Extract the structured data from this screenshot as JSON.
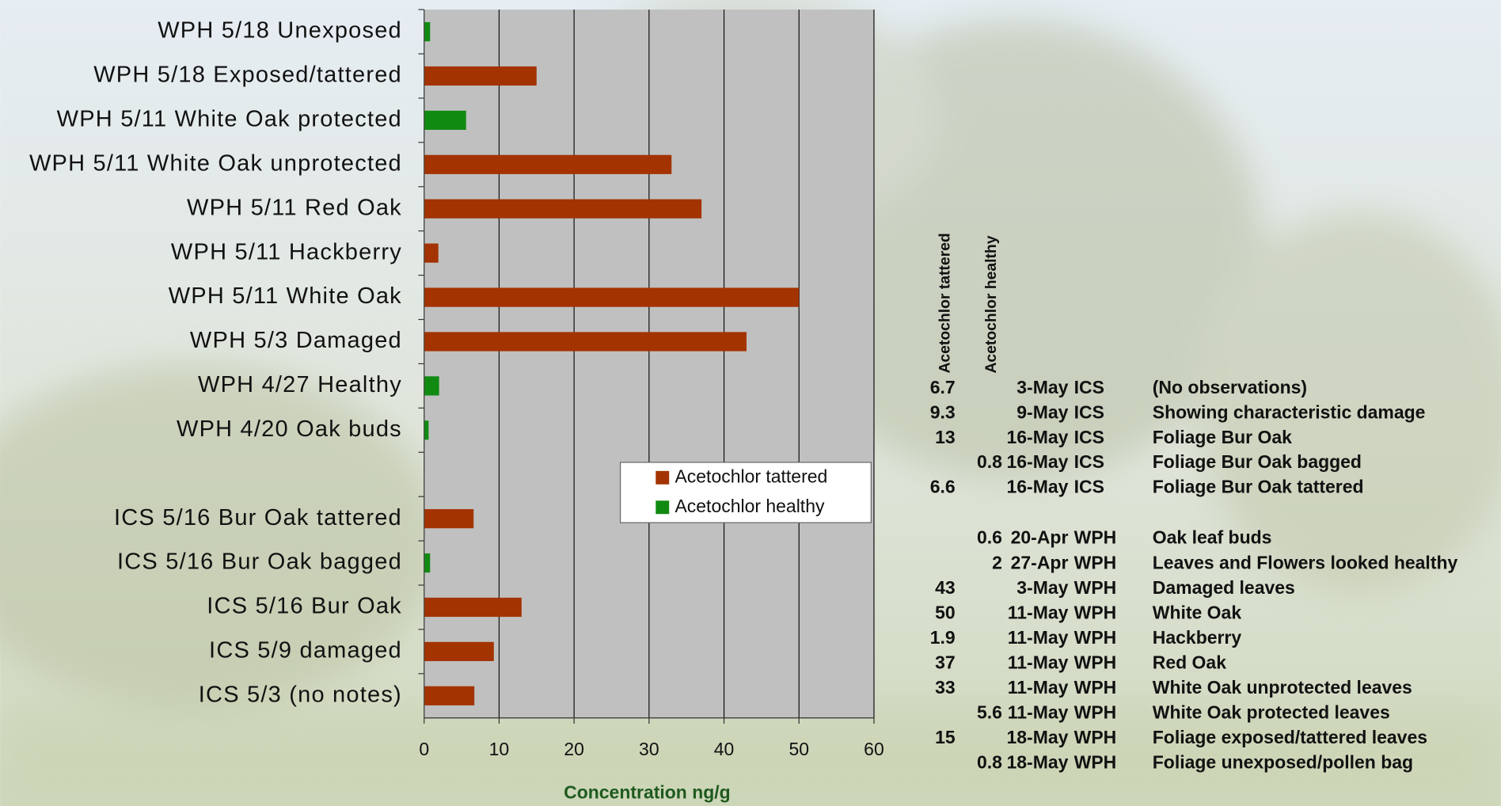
{
  "chart_data": {
    "type": "barh",
    "categories": [
      "WPH 5/18 Unexposed",
      "WPH 5/18 Exposed/tattered",
      "WPH 5/11 White Oak protected",
      "WPH 5/11 White Oak unprotected",
      "WPH 5/11 Red Oak",
      "WPH 5/11 Hackberry",
      "WPH 5/11 White Oak",
      "WPH 5/3 Damaged",
      "WPH 4/27 Healthy",
      "WPH 4/20 Oak buds",
      null,
      "ICS 5/16 Bur Oak tattered",
      "ICS 5/16 Bur Oak bagged",
      "ICS 5/16 Bur Oak",
      "ICS 5/9 damaged",
      "ICS 5/3 (no notes)"
    ],
    "series": [
      {
        "name": "Acetochlor tattered",
        "color": "#a33300",
        "values": [
          null,
          15,
          null,
          33,
          37,
          1.9,
          50,
          43,
          null,
          null,
          null,
          6.6,
          null,
          13,
          9.3,
          6.7
        ]
      },
      {
        "name": "Acetochlor healthy",
        "color": "#118a11",
        "values": [
          0.8,
          null,
          5.6,
          null,
          null,
          null,
          null,
          null,
          2,
          0.6,
          null,
          null,
          0.8,
          null,
          null,
          null
        ]
      }
    ],
    "x_label": "Concentration ng/g",
    "xlim": [
      0,
      60
    ],
    "xticks": [
      0,
      10,
      20,
      30,
      40,
      50,
      60
    ],
    "grid": true,
    "legend": "lower right"
  },
  "table": {
    "headers": [
      "Acetochlor tattered",
      "Acetochlor healthy"
    ],
    "rows": [
      [
        6.7,
        null,
        "3-May",
        "ICS",
        "(No observations)"
      ],
      [
        9.3,
        null,
        "9-May",
        "ICS",
        "Showing characteristic damage"
      ],
      [
        13,
        null,
        "16-May",
        "ICS",
        "Foliage Bur Oak"
      ],
      [
        null,
        0.8,
        "16-May",
        "ICS",
        "Foliage Bur Oak bagged"
      ],
      [
        6.6,
        null,
        "16-May",
        "ICS",
        "Foliage Bur Oak tattered"
      ],
      [
        null,
        0.6,
        "20-Apr",
        "WPH",
        "Oak leaf buds"
      ],
      [
        null,
        2,
        "27-Apr",
        "WPH",
        "Leaves and Flowers looked healthy"
      ],
      [
        43,
        null,
        "3-May",
        "WPH",
        "Damaged leaves"
      ],
      [
        50,
        null,
        "11-May",
        "WPH",
        "White Oak"
      ],
      [
        1.9,
        null,
        "11-May",
        "WPH",
        "Hackberry"
      ],
      [
        37,
        null,
        "11-May",
        "WPH",
        "Red Oak"
      ],
      [
        33,
        null,
        "11-May",
        "WPH",
        "White Oak unprotected leaves"
      ],
      [
        null,
        5.6,
        "11-May",
        "WPH",
        "White Oak protected leaves"
      ],
      [
        15,
        null,
        "18-May",
        "WPH",
        "Foliage exposed/tattered leaves"
      ],
      [
        null,
        0.8,
        "18-May",
        "WPH",
        "Foliage unexposed/pollen bag"
      ]
    ]
  }
}
